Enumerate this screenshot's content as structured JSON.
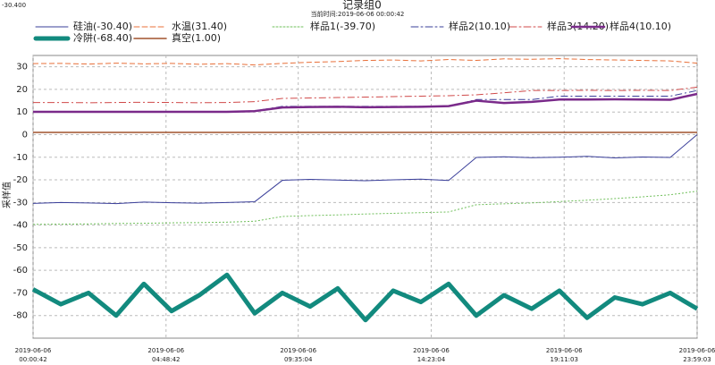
{
  "chart_data": {
    "type": "line",
    "corner_value": "-30.400",
    "title": "记录组0",
    "subtitle": "当前时间:2019-06-06 00:00:42",
    "y_label": "采样值",
    "x": [
      "2019-06-06 00:00:42",
      "2019-06-06 01:00:42",
      "2019-06-06 02:00:42",
      "2019-06-06 03:00:42",
      "2019-06-06 04:00:42",
      "2019-06-06 05:00:42",
      "2019-06-06 06:00:42",
      "2019-06-06 07:00:42",
      "2019-06-06 08:00:42",
      "2019-06-06 09:00:42",
      "2019-06-06 10:00:42",
      "2019-06-06 11:00:42",
      "2019-06-06 12:00:42",
      "2019-06-06 13:00:42",
      "2019-06-06 14:00:42",
      "2019-06-06 15:00:42",
      "2019-06-06 16:00:42",
      "2019-06-06 17:00:42",
      "2019-06-06 18:00:42",
      "2019-06-06 19:00:42",
      "2019-06-06 20:00:42",
      "2019-06-06 21:00:42",
      "2019-06-06 22:00:42",
      "2019-06-06 23:00:42",
      "2019-06-06 23:59:03"
    ],
    "xlim": [
      "2019-06-06 00:00:42",
      "2019-06-06 23:59:03"
    ],
    "xticks": [
      "2019-06-06 00:00:42",
      "2019-06-06 04:48:42",
      "2019-06-06 09:35:04",
      "2019-06-06 14:23:04",
      "2019-06-06 19:11:03",
      "2019-06-06 23:59:03"
    ],
    "ylim": [
      -90,
      35
    ],
    "yticks": [
      -80,
      -70,
      -60,
      -50,
      -40,
      -30,
      -20,
      -10,
      0,
      10,
      20,
      30
    ],
    "grid": true,
    "series": [
      {
        "name": "硅油(-30.40)",
        "color": "#3a3f9a",
        "dash": "none",
        "width": 1,
        "values": [
          -30.4,
          -30,
          -30.2,
          -30.5,
          -29.8,
          -30.1,
          -30.3,
          -30,
          -29.7,
          -20.2,
          -19.8,
          -20.1,
          -20.4,
          -20,
          -19.7,
          -20.3,
          -10.1,
          -9.8,
          -10.2,
          -10,
          -9.6,
          -10.3,
          -9.9,
          -10.1,
          0
        ]
      },
      {
        "name": "水温(31.40)",
        "color": "#e8703a",
        "dash": "6 3",
        "width": 1,
        "values": [
          31.4,
          31.5,
          31.2,
          31.6,
          31.3,
          31.5,
          31.1,
          31.4,
          30.8,
          31.5,
          32,
          32.3,
          32.8,
          33,
          32.6,
          33.2,
          32.8,
          33.5,
          33.3,
          33.6,
          33.2,
          33,
          32.8,
          32.6,
          31.6
        ]
      },
      {
        "name": "样品1(-39.70)",
        "color": "#6fbf5a",
        "dash": "2 2",
        "width": 1,
        "values": [
          -39.7,
          -39.6,
          -39.5,
          -39.3,
          -39.2,
          -39,
          -38.9,
          -38.7,
          -38.3,
          -36.2,
          -35.8,
          -35.5,
          -35.1,
          -34.8,
          -34.5,
          -34.2,
          -31,
          -30.6,
          -30.2,
          -29.6,
          -29,
          -28.3,
          -27.5,
          -26.6,
          -25
        ]
      },
      {
        "name": "样品2(10.10)",
        "color": "#3a3f9a",
        "dash": "8 3 2 3",
        "width": 1,
        "values": [
          10.1,
          10.1,
          10.1,
          10.1,
          10.1,
          10.1,
          10.1,
          10.1,
          10.5,
          12.5,
          12.5,
          12.5,
          12.5,
          12.5,
          12.5,
          12.5,
          15.5,
          15.5,
          15.5,
          17,
          17,
          17,
          17,
          17,
          19.5
        ]
      },
      {
        "name": "样品3(14.20)",
        "color": "#d04a4a",
        "dash": "8 3 2 3",
        "width": 1,
        "values": [
          14.2,
          14.2,
          14.1,
          14.2,
          14.3,
          14.2,
          14.1,
          14.2,
          14.6,
          16,
          16.2,
          16.4,
          16.6,
          16.8,
          17,
          17.2,
          17.6,
          18.5,
          19.5,
          19.5,
          19.6,
          19.5,
          19.6,
          19.5,
          21
        ]
      },
      {
        "name": "样品4(10.10)",
        "color": "#7a2a8a",
        "dash": "none",
        "width": 2.5,
        "values": [
          10.1,
          10.1,
          10.1,
          10.1,
          10.1,
          10.1,
          10.1,
          10.1,
          10.4,
          12,
          12.2,
          12.3,
          12.1,
          12.2,
          12.3,
          12.6,
          15,
          14,
          14.5,
          15.5,
          15.5,
          15.6,
          15.5,
          15.4,
          18
        ]
      },
      {
        "name": "冷阱(-68.40)",
        "color": "#128a7e",
        "dash": "none",
        "width": 5,
        "values": [
          -68.4,
          -75,
          -70,
          -80,
          -66,
          -78,
          -71,
          -62,
          -79,
          -70,
          -76,
          -68,
          -82,
          -69,
          -74,
          -66,
          -80,
          -71,
          -77,
          -69,
          -81,
          -72,
          -75,
          -70,
          -77
        ]
      },
      {
        "name": "真空(1.00)",
        "color": "#a0522d",
        "dash": "none",
        "width": 1.5,
        "values": [
          1,
          1,
          1,
          1,
          1,
          1,
          1,
          1,
          1,
          1,
          1,
          1,
          1,
          1,
          1,
          1,
          1,
          1,
          1,
          1,
          1,
          1,
          1,
          1,
          1
        ]
      }
    ]
  }
}
